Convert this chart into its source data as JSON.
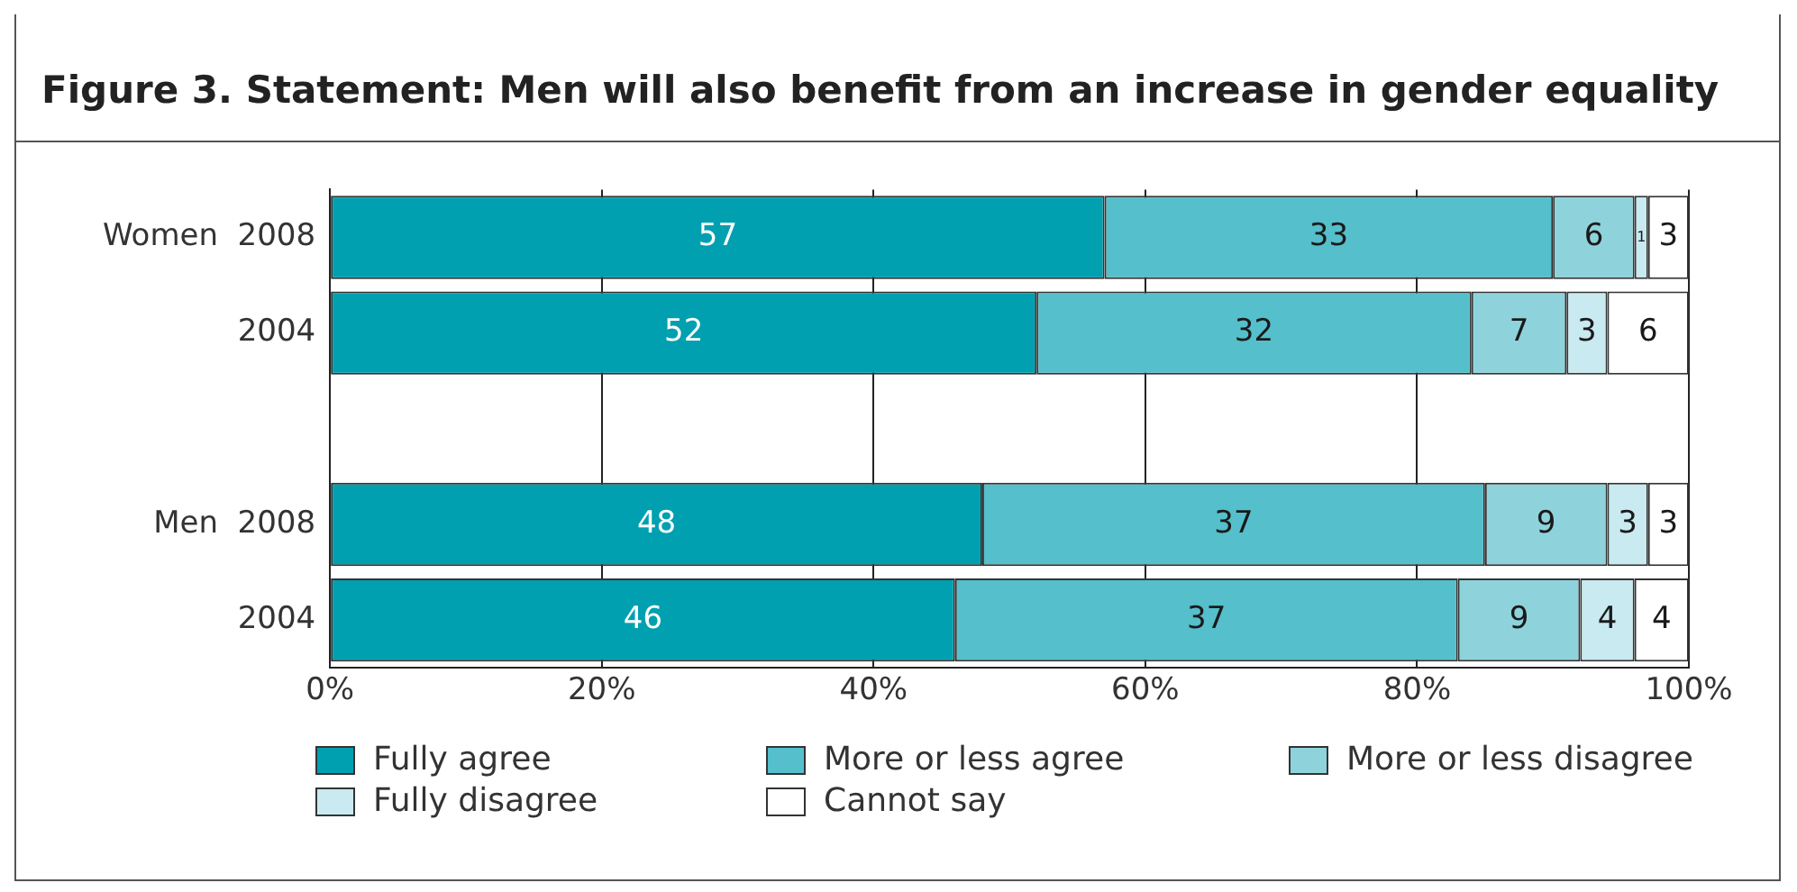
{
  "chart_data": {
    "type": "bar",
    "orientation": "horizontal",
    "stacked": true,
    "title": "Figure 3.  Statement: Men will also benefit from an increase in gender equality",
    "categories": [
      "Women  2008",
      "2004",
      null,
      "Men  2008",
      "2004"
    ],
    "series": [
      {
        "name": "Fully agree",
        "color": "#00a0b0",
        "values": [
          57,
          52,
          null,
          48,
          46
        ]
      },
      {
        "name": "More or less agree",
        "color": "#55bfcc",
        "values": [
          33,
          32,
          null,
          37,
          37
        ]
      },
      {
        "name": "More or less disagree",
        "color": "#8ed3dc",
        "values": [
          6,
          7,
          null,
          9,
          9
        ]
      },
      {
        "name": "Fully disagree",
        "color": "#c8eaf0",
        "values": [
          1,
          3,
          null,
          3,
          4
        ]
      },
      {
        "name": "Cannot say",
        "color": "#ffffff",
        "values": [
          3,
          6,
          null,
          3,
          4
        ]
      }
    ],
    "xlim": [
      0,
      100
    ],
    "xticks": [
      {
        "value": 0,
        "label": "0%"
      },
      {
        "value": 20,
        "label": "20%"
      },
      {
        "value": 40,
        "label": "40%"
      },
      {
        "value": 60,
        "label": "60%"
      },
      {
        "value": 80,
        "label": "80%"
      },
      {
        "value": 100,
        "label": "100%"
      }
    ],
    "grid": "x",
    "data_labels": true,
    "legend": "bottom"
  }
}
